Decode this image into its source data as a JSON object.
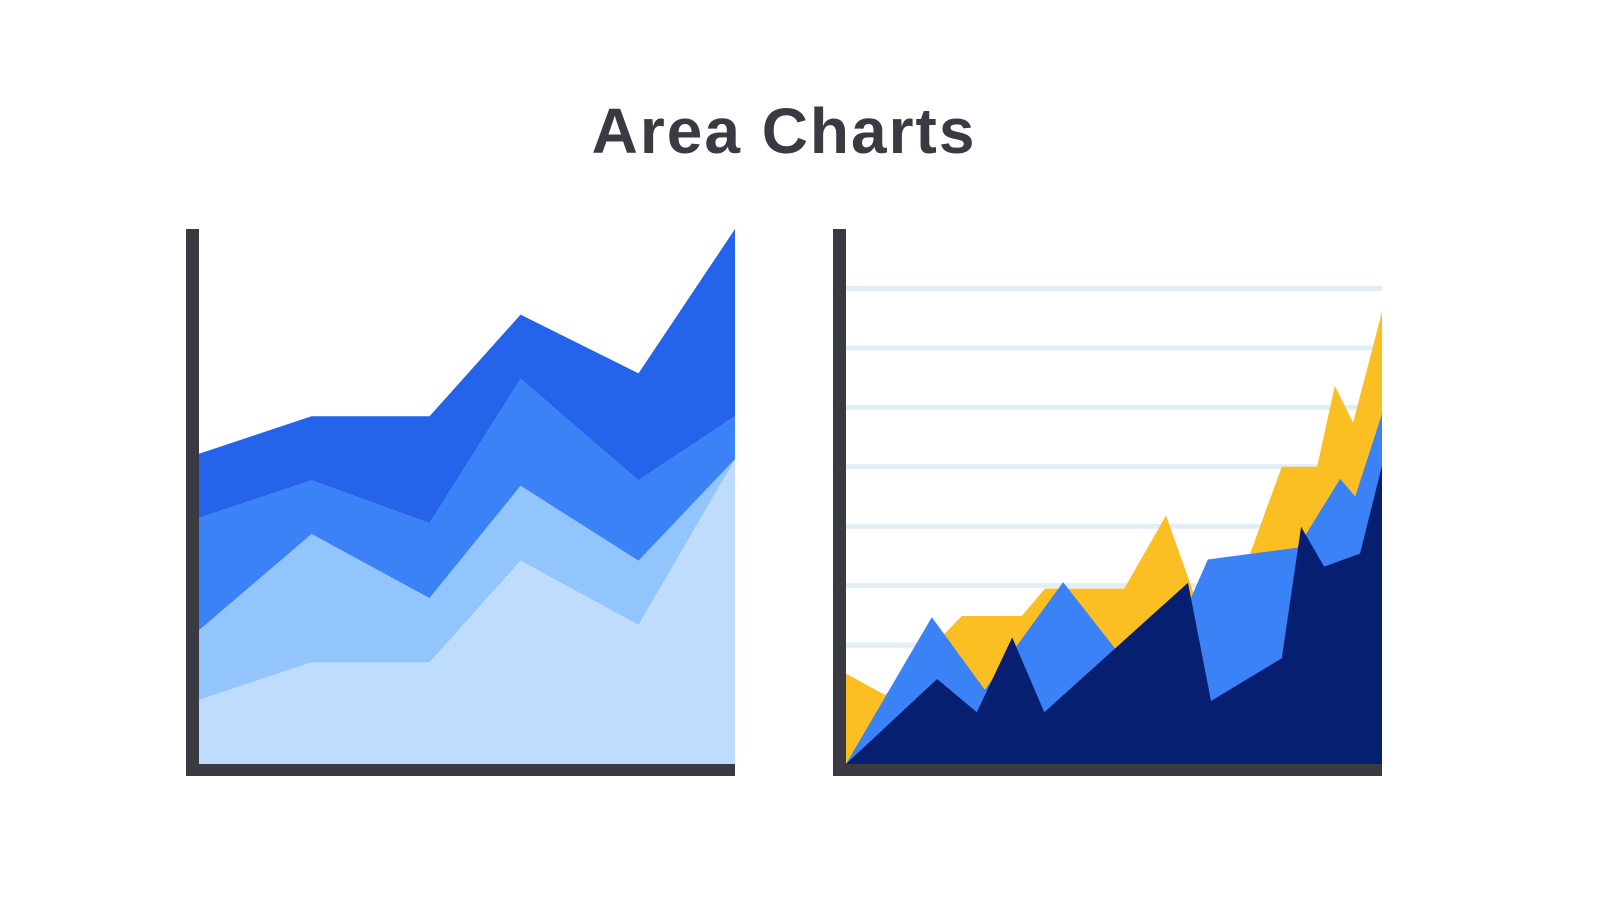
{
  "title": "Area Charts",
  "chart_data": [
    {
      "type": "area",
      "stacked": true,
      "grid": false,
      "x": [
        0,
        21,
        43,
        60,
        82,
        100
      ],
      "xlim": [
        0,
        100
      ],
      "ylim": [
        0,
        100
      ],
      "series": [
        {
          "color": "#bfdbfe",
          "values": [
            12,
            19,
            19,
            38,
            26,
            57
          ]
        },
        {
          "color": "#93c5fd",
          "values": [
            13,
            24,
            12,
            14,
            12,
            0
          ]
        },
        {
          "color": "#3b82f6",
          "values": [
            21,
            10,
            14,
            20,
            15,
            8
          ]
        },
        {
          "color": "#2563eb",
          "values": [
            12,
            12,
            20,
            12,
            20,
            35
          ]
        }
      ]
    },
    {
      "type": "area",
      "stacked": false,
      "grid": true,
      "xlim": [
        0,
        100
      ],
      "ylim": [
        0,
        9
      ],
      "yticks": [
        2,
        3,
        4,
        5,
        6,
        7,
        8
      ],
      "series": [
        {
          "color": "#fbbf24",
          "x": [
            0,
            7.3,
            21.6,
            32.8,
            37.1,
            51.9,
            59.7,
            65.3,
            75.4,
            81.3,
            87.9,
            91.2,
            94.6,
            100
          ],
          "values": [
            1.52,
            1.16,
            2.49,
            2.49,
            2.95,
            2.95,
            4.18,
            2.76,
            3.54,
            5.0,
            5.0,
            6.36,
            5.74,
            7.61
          ]
        },
        {
          "color": "#3b82f6",
          "x": [
            0,
            16.0,
            25.9,
            40.5,
            50.4,
            64.2,
            67.5,
            84.3,
            92.2,
            95.0,
            100
          ],
          "values": [
            0,
            2.47,
            1.25,
            3.06,
            1.92,
            2.76,
            3.44,
            3.64,
            4.8,
            4.5,
            5.89
          ]
        },
        {
          "color": "#071f70",
          "x": [
            0,
            17.0,
            24.4,
            31.0,
            37.0,
            63.8,
            68.1,
            81.3,
            84.9,
            89.2,
            95.9,
            100
          ],
          "values": [
            0,
            1.43,
            0.87,
            2.13,
            0.87,
            3.05,
            1.06,
            1.78,
            3.99,
            3.32,
            3.54,
            5.02
          ]
        }
      ]
    }
  ]
}
